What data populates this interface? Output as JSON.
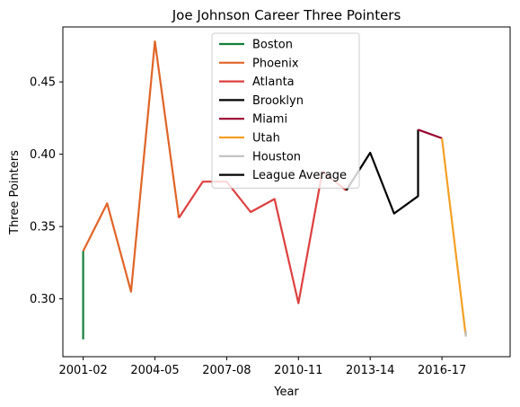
{
  "chart_data": {
    "type": "line",
    "title": "Joe Johnson  Career Three Pointers",
    "xlabel": "Year",
    "ylabel": "Three Pointers",
    "xlim": [
      -0.85,
      17.85
    ],
    "ylim": [
      0.26,
      0.488
    ],
    "x_tick_labels": [
      "2001-02",
      "2004-05",
      "2007-08",
      "2010-11",
      "2013-14",
      "2016-17"
    ],
    "x_tick_positions": [
      0,
      3,
      6,
      9,
      12,
      15
    ],
    "y_ticks": [
      0.3,
      0.35,
      0.4,
      0.45
    ],
    "y_tick_labels": [
      "0.30",
      "0.35",
      "0.40",
      "0.45"
    ],
    "grid": false,
    "legend_placement": "top-center",
    "series": [
      {
        "name": "Boston",
        "color": "#13803b",
        "points": [
          [
            0,
            0.272
          ],
          [
            0,
            0.333
          ]
        ]
      },
      {
        "name": "Phoenix",
        "color": "#e06427",
        "points": [
          [
            0,
            0.333
          ],
          [
            1,
            0.366
          ],
          [
            2,
            0.305
          ],
          [
            3,
            0.478
          ],
          [
            4,
            0.356
          ]
        ]
      },
      {
        "name": "Atlanta",
        "color": "#de3f3f",
        "points": [
          [
            4,
            0.356
          ],
          [
            5,
            0.381
          ],
          [
            6,
            0.381
          ],
          [
            7,
            0.36
          ],
          [
            8,
            0.369
          ],
          [
            9,
            0.297
          ],
          [
            10,
            0.388
          ],
          [
            11,
            0.375
          ]
        ]
      },
      {
        "name": "Brooklyn",
        "color": "#000000",
        "points": [
          [
            11,
            0.375
          ],
          [
            12,
            0.401
          ],
          [
            13,
            0.359
          ],
          [
            14,
            0.371
          ],
          [
            14,
            0.417
          ]
        ]
      },
      {
        "name": "Miami",
        "color": "#98002e",
        "points": [
          [
            14,
            0.417
          ],
          [
            15,
            0.411
          ]
        ]
      },
      {
        "name": "Utah",
        "color": "#f4a024",
        "points": [
          [
            15,
            0.411
          ],
          [
            16,
            0.274
          ]
        ]
      },
      {
        "name": "Houston",
        "color": "#c0c0c0",
        "points": [
          [
            16,
            0.274
          ],
          [
            16,
            0.278
          ]
        ]
      },
      {
        "name": "League Average",
        "color": "#000000",
        "points": []
      }
    ]
  }
}
